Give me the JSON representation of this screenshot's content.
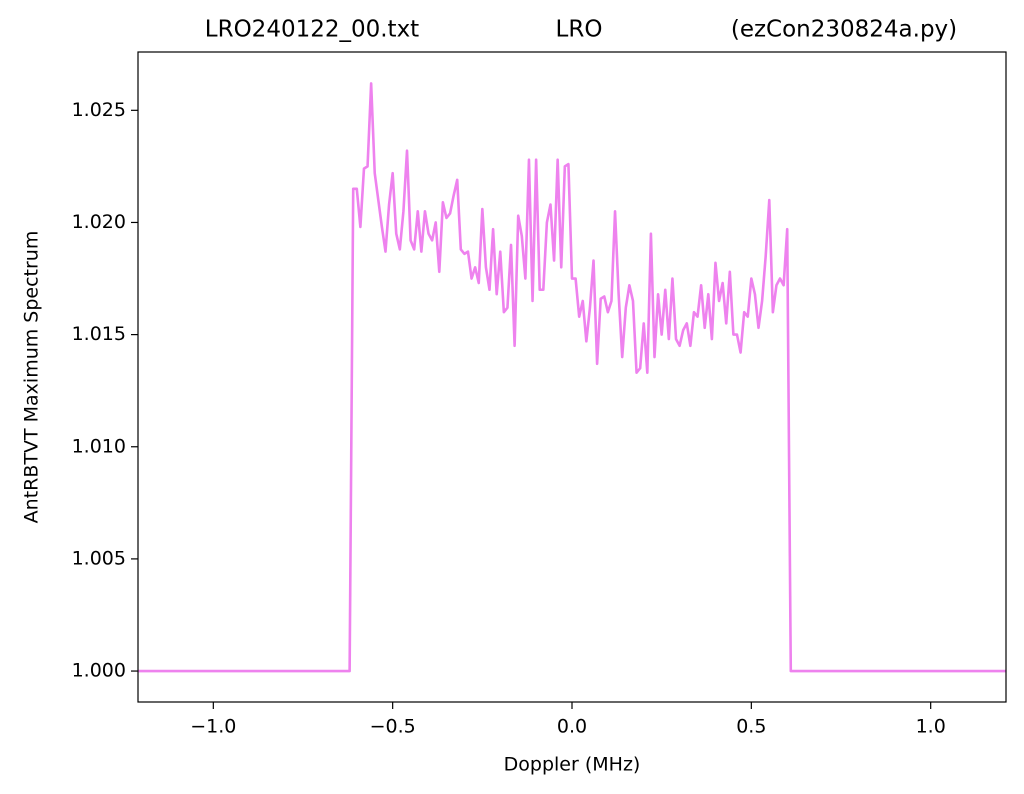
{
  "chart_data": {
    "type": "line",
    "title_left": "LRO240122_00.txt",
    "title_center": "LRO",
    "title_right": "(ezCon230824a.py)",
    "xlabel": "Doppler (MHz)",
    "ylabel": "AntRBTVT Maximum Spectrum",
    "x": [
      -1.21,
      -0.62,
      -0.61,
      -0.6,
      -0.59,
      -0.58,
      -0.57,
      -0.56,
      -0.55,
      -0.54,
      -0.53,
      -0.52,
      -0.51,
      -0.5,
      -0.49,
      -0.48,
      -0.47,
      -0.46,
      -0.45,
      -0.44,
      -0.43,
      -0.42,
      -0.41,
      -0.4,
      -0.39,
      -0.38,
      -0.37,
      -0.36,
      -0.35,
      -0.34,
      -0.33,
      -0.32,
      -0.31,
      -0.3,
      -0.29,
      -0.28,
      -0.27,
      -0.26,
      -0.25,
      -0.24,
      -0.23,
      -0.22,
      -0.21,
      -0.2,
      -0.19,
      -0.18,
      -0.17,
      -0.16,
      -0.15,
      -0.14,
      -0.13,
      -0.12,
      -0.11,
      -0.1,
      -0.09,
      -0.08,
      -0.07,
      -0.06,
      -0.05,
      -0.04,
      -0.03,
      -0.02,
      -0.01,
      0.0,
      0.01,
      0.02,
      0.03,
      0.04,
      0.05,
      0.06,
      0.07,
      0.08,
      0.09,
      0.1,
      0.11,
      0.12,
      0.13,
      0.14,
      0.15,
      0.16,
      0.17,
      0.18,
      0.19,
      0.2,
      0.21,
      0.22,
      0.23,
      0.24,
      0.25,
      0.26,
      0.27,
      0.28,
      0.29,
      0.3,
      0.31,
      0.32,
      0.33,
      0.34,
      0.35,
      0.36,
      0.37,
      0.38,
      0.39,
      0.4,
      0.41,
      0.42,
      0.43,
      0.44,
      0.45,
      0.46,
      0.47,
      0.48,
      0.49,
      0.5,
      0.51,
      0.52,
      0.53,
      0.54,
      0.55,
      0.56,
      0.57,
      0.58,
      0.59,
      0.6,
      0.61,
      1.21
    ],
    "series": [
      {
        "name": "AntRBTVT Maximum Spectrum",
        "color": "#ee82ee",
        "values": [
          1.0,
          1.0,
          1.0215,
          1.0215,
          1.0198,
          1.0224,
          1.0225,
          1.0262,
          1.0222,
          1.021,
          1.0198,
          1.0187,
          1.0208,
          1.0222,
          1.0195,
          1.0188,
          1.0205,
          1.0232,
          1.0192,
          1.0188,
          1.0205,
          1.0187,
          1.0205,
          1.0195,
          1.0192,
          1.02,
          1.0178,
          1.0209,
          1.0202,
          1.0204,
          1.0212,
          1.0219,
          1.0188,
          1.0186,
          1.0187,
          1.0175,
          1.018,
          1.0173,
          1.0206,
          1.018,
          1.017,
          1.0197,
          1.0168,
          1.0187,
          1.016,
          1.0162,
          1.019,
          1.0145,
          1.0203,
          1.0194,
          1.0175,
          1.0228,
          1.0165,
          1.0228,
          1.017,
          1.017,
          1.02,
          1.0208,
          1.0183,
          1.0228,
          1.018,
          1.0225,
          1.0226,
          1.0175,
          1.0175,
          1.0158,
          1.0165,
          1.0147,
          1.0162,
          1.0183,
          1.0137,
          1.0166,
          1.0167,
          1.016,
          1.0165,
          1.0205,
          1.0168,
          1.014,
          1.0162,
          1.0172,
          1.0165,
          1.0133,
          1.0135,
          1.0155,
          1.0133,
          1.0195,
          1.014,
          1.0168,
          1.015,
          1.017,
          1.0148,
          1.0175,
          1.0148,
          1.0145,
          1.0152,
          1.0155,
          1.0145,
          1.016,
          1.0158,
          1.0172,
          1.0153,
          1.0168,
          1.0148,
          1.0182,
          1.0165,
          1.0173,
          1.0155,
          1.0178,
          1.015,
          1.015,
          1.0142,
          1.016,
          1.0158,
          1.0175,
          1.0168,
          1.0153,
          1.0165,
          1.0185,
          1.021,
          1.016,
          1.0172,
          1.0175,
          1.0172,
          1.0197,
          1.0,
          1.0
        ]
      }
    ],
    "xlim": [
      -1.21,
      1.21
    ],
    "ylim": [
      0.99862,
      1.0276
    ],
    "xticks": [
      {
        "value": -1.0,
        "label": "−1.0"
      },
      {
        "value": -0.5,
        "label": "−0.5"
      },
      {
        "value": 0.0,
        "label": "0.0"
      },
      {
        "value": 0.5,
        "label": "0.5"
      },
      {
        "value": 1.0,
        "label": "1.0"
      }
    ],
    "yticks": [
      {
        "value": 1.0,
        "label": "1.000"
      },
      {
        "value": 1.005,
        "label": "1.005"
      },
      {
        "value": 1.01,
        "label": "1.010"
      },
      {
        "value": 1.015,
        "label": "1.015"
      },
      {
        "value": 1.02,
        "label": "1.020"
      },
      {
        "value": 1.025,
        "label": "1.025"
      }
    ],
    "grid": false
  }
}
